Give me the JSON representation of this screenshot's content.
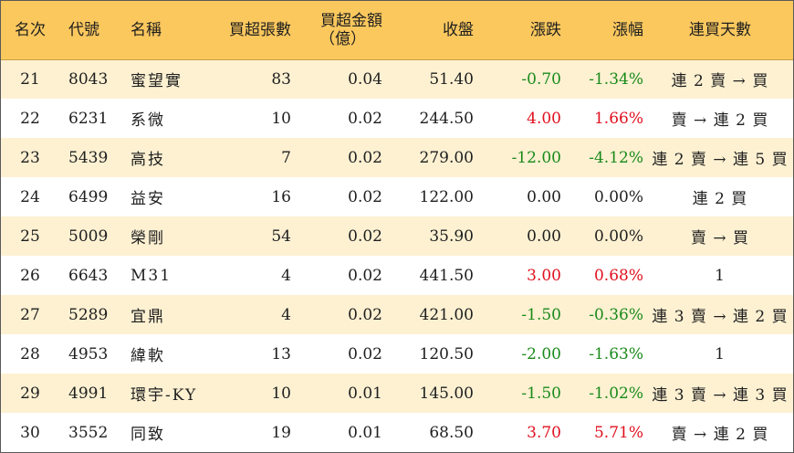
{
  "headers": {
    "rank": "名次",
    "code": "代號",
    "name": "名稱",
    "buy_volume": "買超張數",
    "buy_amount_line1": "買超金額",
    "buy_amount_line2": "（億）",
    "close": "收盤",
    "change": "漲跌",
    "change_pct": "漲幅",
    "consecutive_days": "連買天數"
  },
  "colors": {
    "header_bg": "#fbc85e",
    "odd_row_bg": "#fdf1d2",
    "up": "#e0101e",
    "down": "#1a8a1a"
  },
  "rows": [
    {
      "rank": "21",
      "code": "8043",
      "name": "蜜望實",
      "volume": "83",
      "amount": "0.04",
      "close": "51.40",
      "change": "-0.70",
      "pct": "-1.34%",
      "trend": "down",
      "days": "連 2 賣 → 買"
    },
    {
      "rank": "22",
      "code": "6231",
      "name": "系微",
      "volume": "10",
      "amount": "0.02",
      "close": "244.50",
      "change": "4.00",
      "pct": "1.66%",
      "trend": "up",
      "days": "賣 → 連 2 買"
    },
    {
      "rank": "23",
      "code": "5439",
      "name": "高技",
      "volume": "7",
      "amount": "0.02",
      "close": "279.00",
      "change": "-12.00",
      "pct": "-4.12%",
      "trend": "down",
      "days": "連 2 賣 → 連 5 買"
    },
    {
      "rank": "24",
      "code": "6499",
      "name": "益安",
      "volume": "16",
      "amount": "0.02",
      "close": "122.00",
      "change": "0.00",
      "pct": "0.00%",
      "trend": "flat",
      "days": "連 2 買"
    },
    {
      "rank": "25",
      "code": "5009",
      "name": "榮剛",
      "volume": "54",
      "amount": "0.02",
      "close": "35.90",
      "change": "0.00",
      "pct": "0.00%",
      "trend": "flat",
      "days": "賣 → 買"
    },
    {
      "rank": "26",
      "code": "6643",
      "name": "M31",
      "volume": "4",
      "amount": "0.02",
      "close": "441.50",
      "change": "3.00",
      "pct": "0.68%",
      "trend": "up",
      "days": "1"
    },
    {
      "rank": "27",
      "code": "5289",
      "name": "宜鼎",
      "volume": "4",
      "amount": "0.02",
      "close": "421.00",
      "change": "-1.50",
      "pct": "-0.36%",
      "trend": "down",
      "days": "連 3 賣 → 連 2 買"
    },
    {
      "rank": "28",
      "code": "4953",
      "name": "緯軟",
      "volume": "13",
      "amount": "0.02",
      "close": "120.50",
      "change": "-2.00",
      "pct": "-1.63%",
      "trend": "down",
      "days": "1"
    },
    {
      "rank": "29",
      "code": "4991",
      "name": "環宇-KY",
      "volume": "10",
      "amount": "0.01",
      "close": "145.00",
      "change": "-1.50",
      "pct": "-1.02%",
      "trend": "down",
      "days": "連 3 賣 → 連 3 買"
    },
    {
      "rank": "30",
      "code": "3552",
      "name": "同致",
      "volume": "19",
      "amount": "0.01",
      "close": "68.50",
      "change": "3.70",
      "pct": "5.71%",
      "trend": "up",
      "days": "賣 → 連 2 買"
    }
  ]
}
